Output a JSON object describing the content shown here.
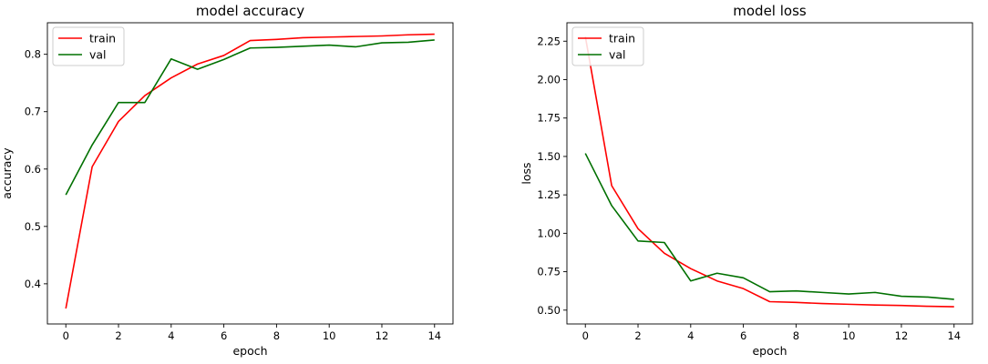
{
  "chart_data": [
    {
      "type": "line",
      "title": "model accuracy",
      "xlabel": "epoch",
      "ylabel": "accuracy",
      "x": [
        0,
        1,
        2,
        3,
        4,
        5,
        6,
        7,
        8,
        9,
        10,
        11,
        12,
        13,
        14
      ],
      "xlim": [
        -0.7,
        14.7
      ],
      "ylim": [
        0.33,
        0.855
      ],
      "xticks": [
        0,
        2,
        4,
        6,
        8,
        10,
        12,
        14
      ],
      "yticks": [
        0.4,
        0.5,
        0.6,
        0.7,
        0.8
      ],
      "ytick_labels": [
        "0.4",
        "0.5",
        "0.6",
        "0.7",
        "0.8"
      ],
      "legend": "upper-left",
      "series": [
        {
          "name": "train",
          "color": "#ff0000",
          "values": [
            0.357,
            0.604,
            0.683,
            0.728,
            0.759,
            0.783,
            0.798,
            0.824,
            0.826,
            0.829,
            0.83,
            0.831,
            0.832,
            0.834,
            0.835
          ]
        },
        {
          "name": "val",
          "color": "#007000",
          "values": [
            0.555,
            0.642,
            0.716,
            0.716,
            0.792,
            0.774,
            0.791,
            0.811,
            0.812,
            0.814,
            0.816,
            0.813,
            0.82,
            0.821,
            0.825
          ]
        }
      ]
    },
    {
      "type": "line",
      "title": "model loss",
      "xlabel": "epoch",
      "ylabel": "loss",
      "x": [
        0,
        1,
        2,
        3,
        4,
        5,
        6,
        7,
        8,
        9,
        10,
        11,
        12,
        13,
        14
      ],
      "xlim": [
        -0.7,
        14.7
      ],
      "ylim": [
        0.41,
        2.37
      ],
      "xticks": [
        0,
        2,
        4,
        6,
        8,
        10,
        12,
        14
      ],
      "yticks": [
        0.5,
        0.75,
        1.0,
        1.25,
        1.5,
        1.75,
        2.0,
        2.25
      ],
      "ytick_labels": [
        "0.50",
        "0.75",
        "1.00",
        "1.25",
        "1.50",
        "1.75",
        "2.00",
        "2.25"
      ],
      "legend": "upper-left",
      "series": [
        {
          "name": "train",
          "color": "#ff0000",
          "values": [
            2.28,
            1.31,
            1.03,
            0.87,
            0.77,
            0.69,
            0.64,
            0.555,
            0.55,
            0.543,
            0.538,
            0.533,
            0.53,
            0.525,
            0.522
          ]
        },
        {
          "name": "val",
          "color": "#007000",
          "values": [
            1.52,
            1.18,
            0.95,
            0.94,
            0.69,
            0.74,
            0.71,
            0.62,
            0.625,
            0.615,
            0.605,
            0.615,
            0.59,
            0.585,
            0.57
          ]
        }
      ]
    }
  ]
}
